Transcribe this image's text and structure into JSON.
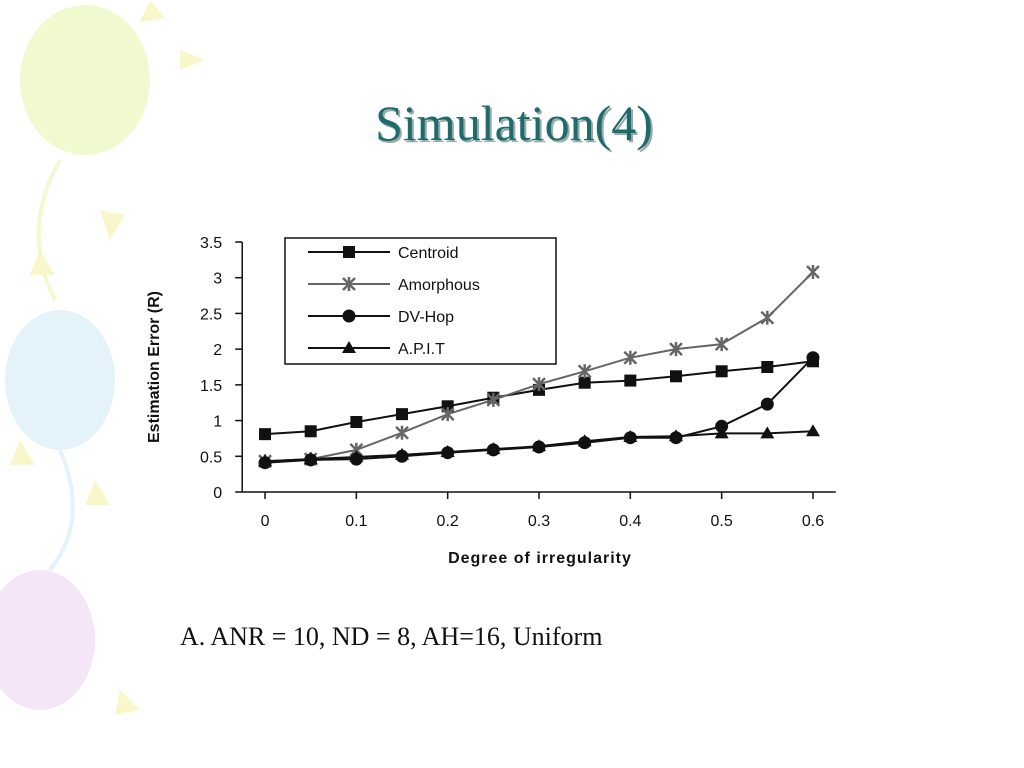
{
  "title": "Simulation(4)",
  "caption": "A. ANR = 10, ND = 8, AH=16, Uniform",
  "chart_data": {
    "type": "line",
    "x_label": "Degree of irregularity",
    "y_label": "Estimation Error (R)",
    "x": [
      0,
      0.05,
      0.1,
      0.15,
      0.2,
      0.25,
      0.3,
      0.35,
      0.4,
      0.45,
      0.5,
      0.55,
      0.6
    ],
    "series": [
      {
        "name": "Centroid",
        "color": "#111111",
        "marker": "square",
        "values": [
          0.81,
          0.85,
          0.98,
          1.09,
          1.2,
          1.32,
          1.43,
          1.53,
          1.56,
          1.62,
          1.69,
          1.75,
          1.83
        ]
      },
      {
        "name": "Amorphous",
        "color": "#666666",
        "marker": "x",
        "values": [
          0.43,
          0.46,
          0.59,
          0.83,
          1.09,
          1.29,
          1.51,
          1.69,
          1.88,
          2.0,
          2.07,
          2.44,
          3.08
        ]
      },
      {
        "name": "DV-Hop",
        "color": "#111111",
        "marker": "circle",
        "values": [
          0.41,
          0.45,
          0.46,
          0.5,
          0.55,
          0.59,
          0.63,
          0.69,
          0.76,
          0.76,
          0.92,
          1.23,
          1.88
        ]
      },
      {
        "name": "A.P.I.T",
        "color": "#111111",
        "marker": "triangle",
        "values": [
          0.43,
          0.46,
          0.49,
          0.52,
          0.56,
          0.6,
          0.64,
          0.71,
          0.77,
          0.78,
          0.82,
          0.82,
          0.85
        ]
      }
    ],
    "xlim": [
      -0.025,
      0.625
    ],
    "xticks": [
      0,
      0.1,
      0.2,
      0.3,
      0.4,
      0.5,
      0.6
    ],
    "ylim": [
      0,
      3.5
    ],
    "yticks": [
      0,
      0.5,
      1,
      1.5,
      2,
      2.5,
      3,
      3.5
    ],
    "legend": "upper-left"
  }
}
